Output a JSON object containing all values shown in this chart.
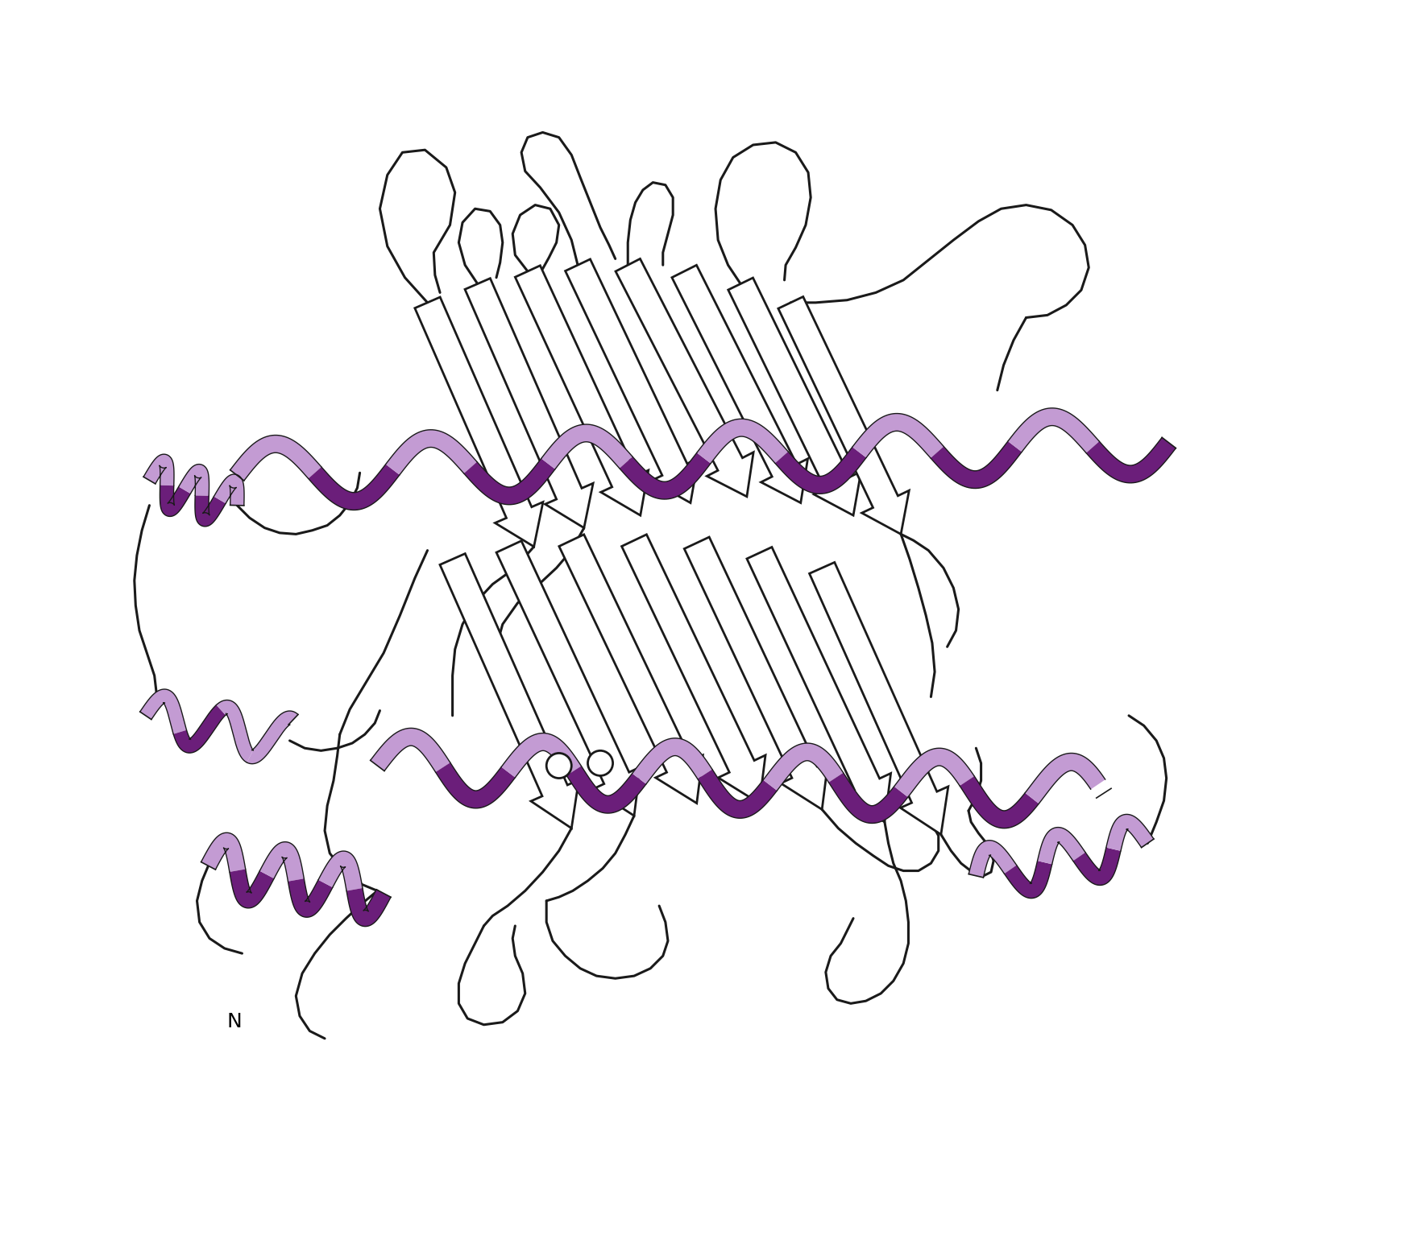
{
  "figure_width": 17.45,
  "figure_height": 15.6,
  "dpi": 100,
  "background_color": "#ffffff",
  "helix_color_dark": "#6B1E7A",
  "helix_color_mid": "#9B59B6",
  "helix_color_light": "#C39BD3",
  "strand_fill": "#ffffff",
  "strand_stroke": "#1a1a1a",
  "loop_color": "#1a1a1a",
  "label_N_text": "N",
  "label_fontsize": 18
}
